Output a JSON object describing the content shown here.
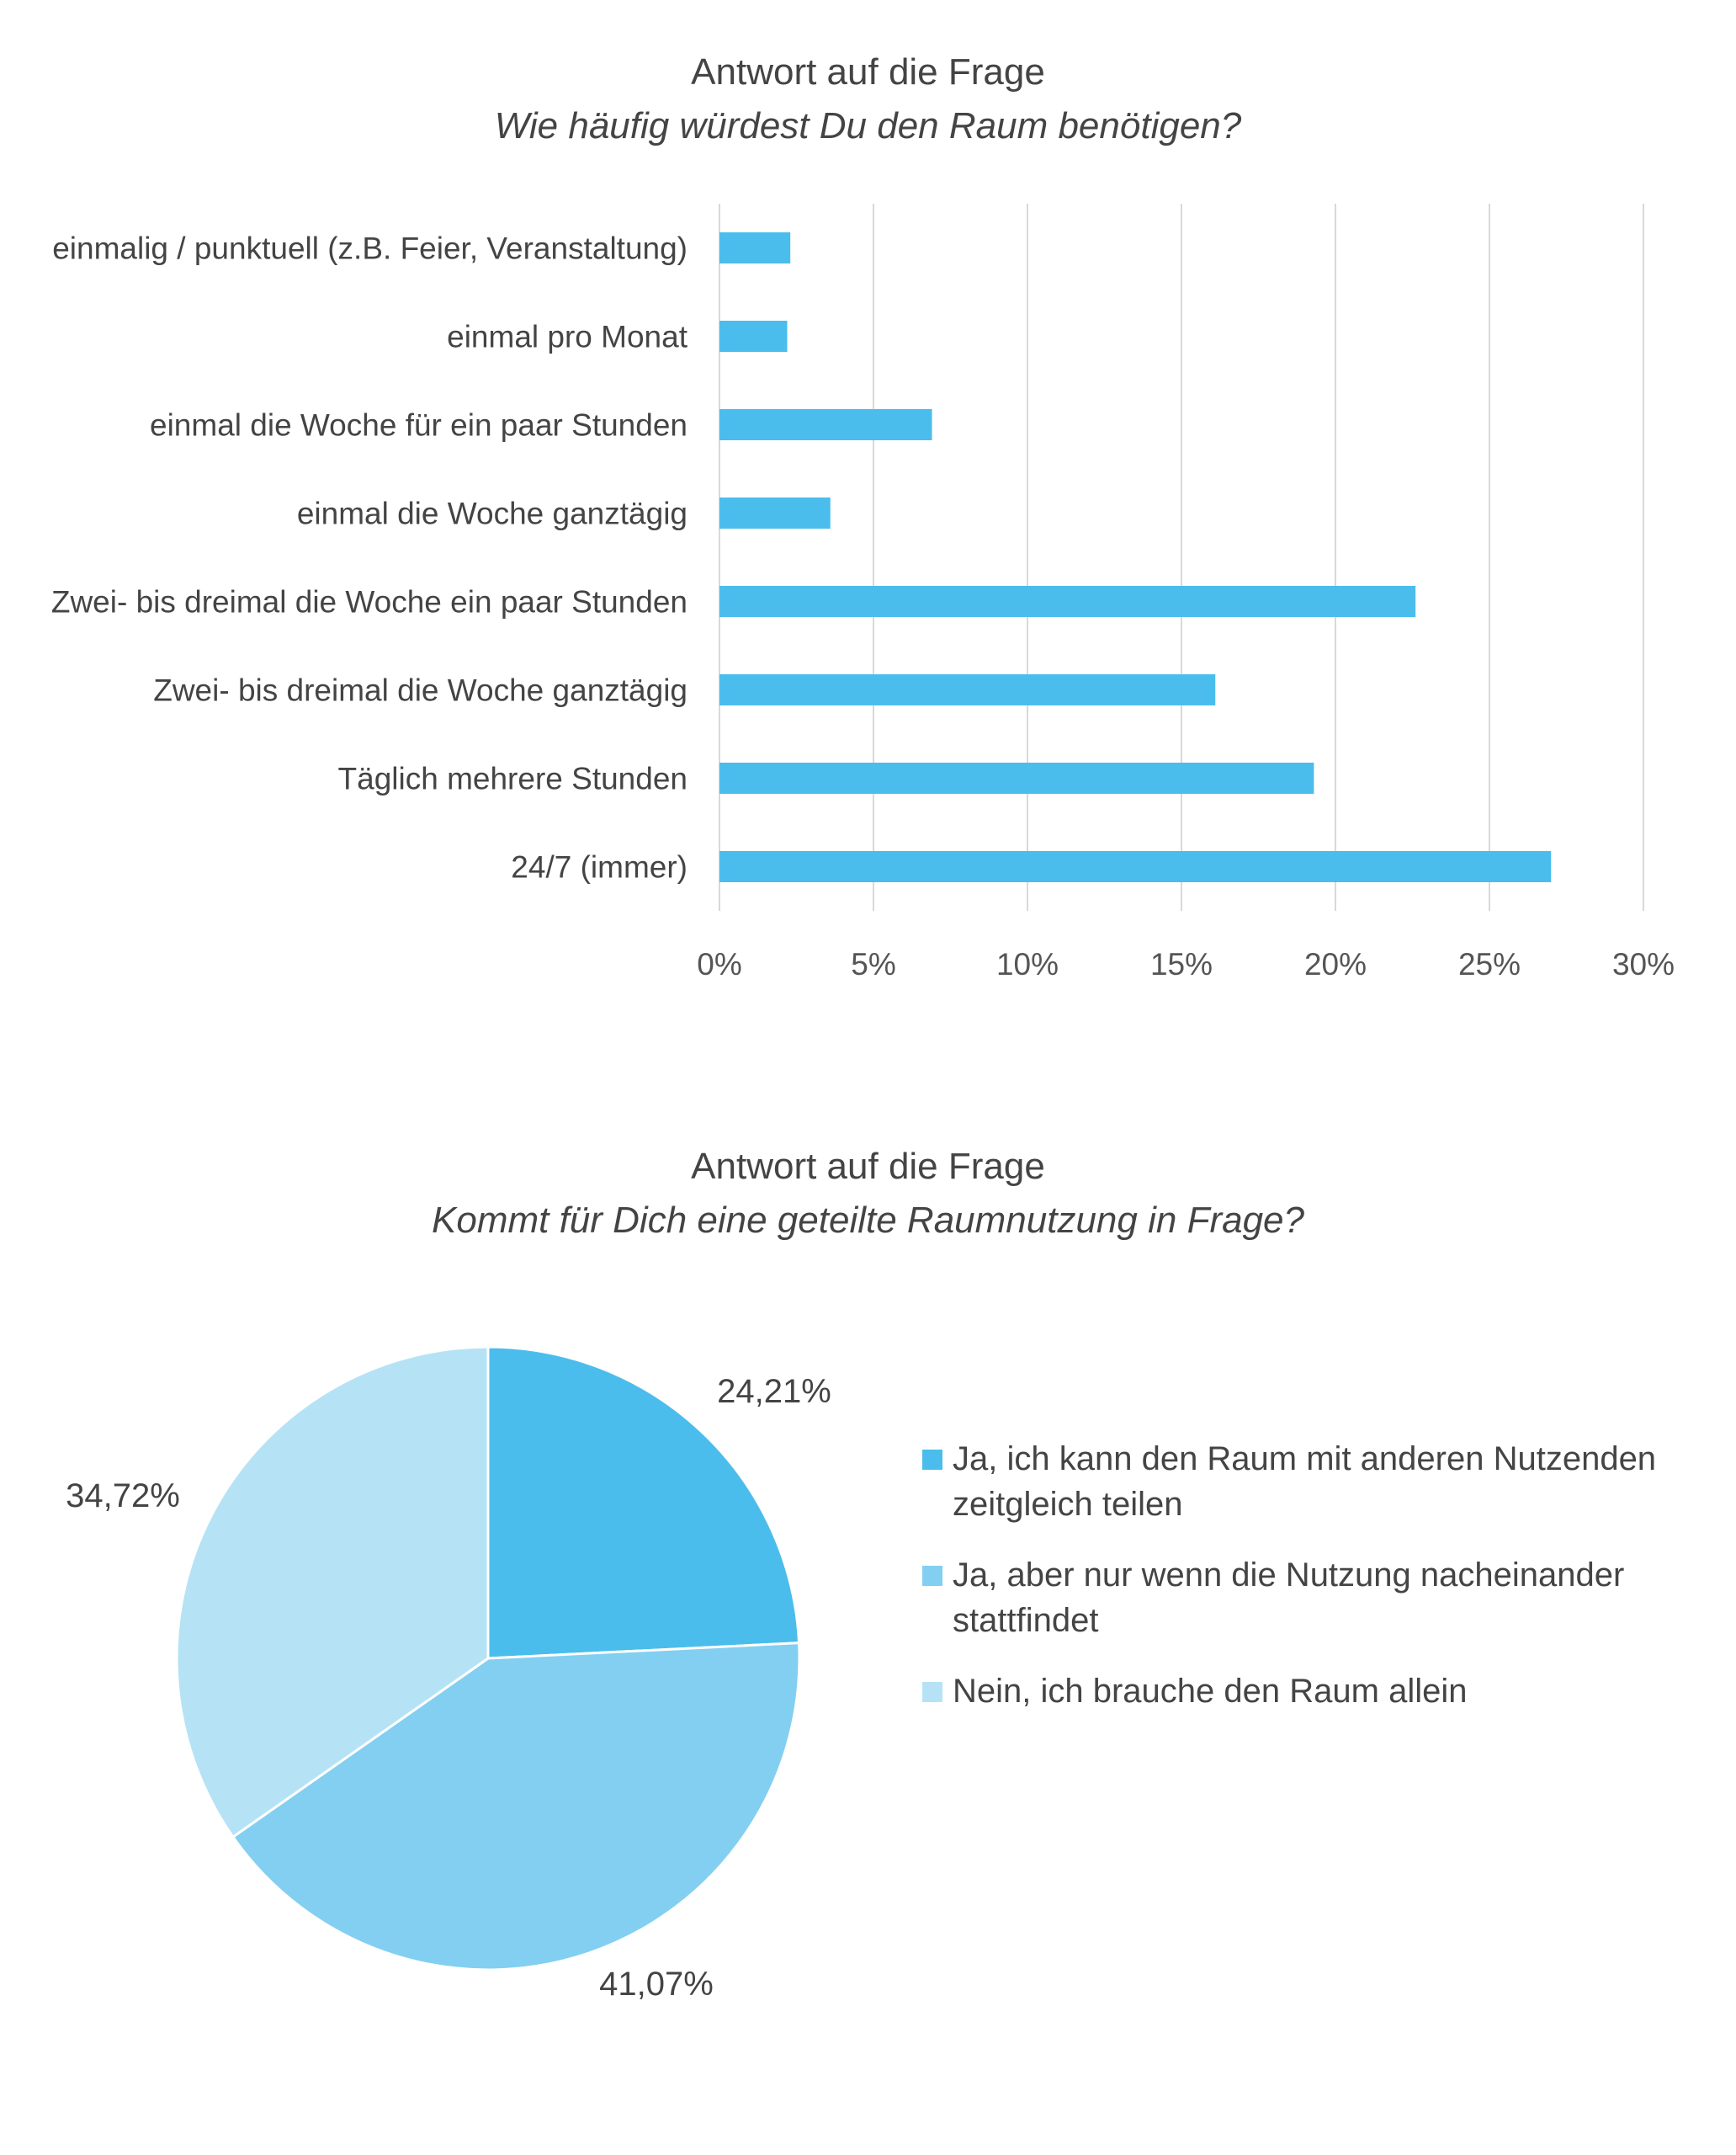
{
  "chart_data": [
    {
      "type": "bar",
      "orientation": "horizontal",
      "title": "Antwort auf die Frage",
      "subtitle": "Wie häufig würdest Du den Raum benötigen?",
      "categories": [
        "einmalig / punktuell (z.B. Feier, Veranstaltung)",
        "einmal pro Monat",
        "einmal die Woche für ein paar Stunden",
        "einmal die Woche ganztägig",
        "Zwei- bis dreimal die Woche ein paar Stunden",
        "Zwei- bis dreimal die Woche ganztägig",
        "Täglich mehrere Stunden",
        "24/7 (immer)"
      ],
      "values": [
        2.3,
        2.2,
        6.9,
        3.6,
        22.6,
        16.1,
        19.3,
        27.0
      ],
      "xlim": [
        0,
        30
      ],
      "ticks": [
        "0%",
        "5%",
        "10%",
        "15%",
        "20%",
        "25%",
        "30%"
      ],
      "tick_values": [
        0,
        5,
        10,
        15,
        20,
        25,
        30
      ],
      "grid": "vertical",
      "color": "#4bbdec"
    },
    {
      "type": "pie",
      "title": "Antwort auf die Frage",
      "subtitle": "Kommt für Dich eine geteilte Raumnutzung in Frage?",
      "labels": [
        "Ja, ich kann den Raum mit anderen Nutzenden zeitgleich teilen",
        "Ja, aber nur wenn die Nutzung nacheinander stattfindet",
        "Nein, ich brauche den Raum allein"
      ],
      "values": [
        24.21,
        41.07,
        34.72
      ],
      "value_labels": [
        "24,21%",
        "41,07%",
        "34,72%"
      ],
      "colors": [
        "#4bbdec",
        "#83cff1",
        "#b5e3f5"
      ],
      "legend": "right"
    }
  ]
}
